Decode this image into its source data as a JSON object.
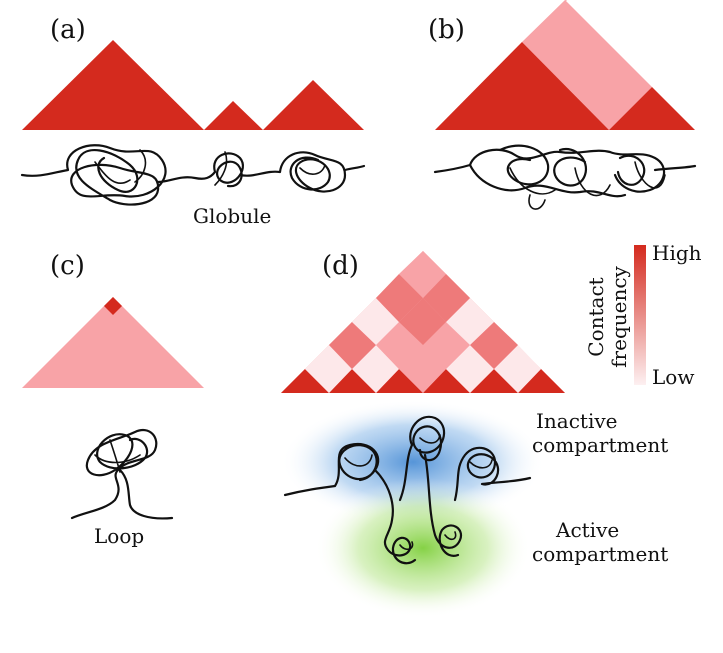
{
  "panels": {
    "a": {
      "label": "(a)",
      "caption": "Globule"
    },
    "b": {
      "label": "(b)"
    },
    "c": {
      "label": "(c)",
      "caption": "Loop"
    },
    "d": {
      "label": "(d)",
      "inactive_line1": "Inactive",
      "inactive_line2": "compartment",
      "active_line1": "Active",
      "active_line2": "compartment"
    }
  },
  "colorbar": {
    "title_line1": "Contact",
    "title_line2": "frequency",
    "high": "High",
    "low": "Low"
  },
  "colors": {
    "high": "#d42a1e",
    "mid": "#ee7a7a",
    "low": "#f8a3a7",
    "lowest": "#fde8ea",
    "inactive_glow": "#5b9fd8",
    "active_glow": "#8bd44a"
  }
}
